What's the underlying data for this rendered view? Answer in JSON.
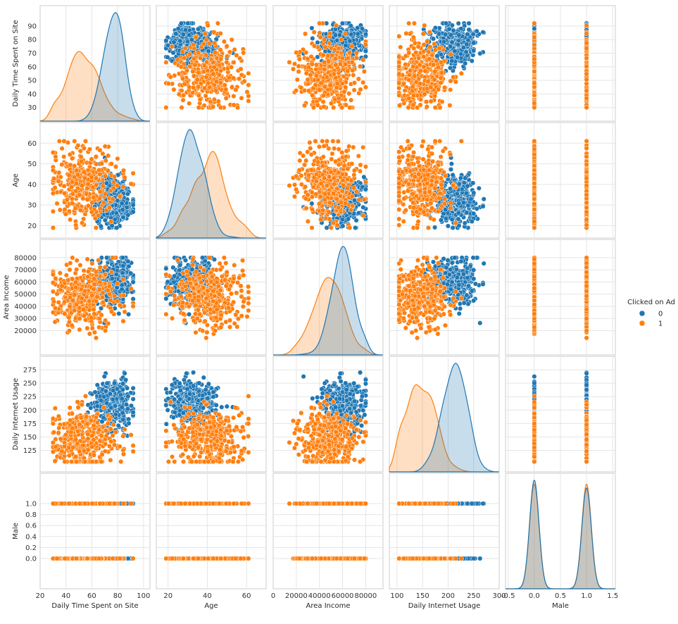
{
  "chart_data": {
    "type": "scatter",
    "subtype": "pairplot",
    "variables": [
      {
        "name": "Daily Time Spent on Site",
        "range": [
          30,
          92
        ],
        "axis_lim": [
          20,
          105
        ],
        "xticks": [
          20,
          40,
          60,
          80,
          100
        ],
        "yticks": [
          30,
          40,
          50,
          60,
          70,
          80,
          90
        ]
      },
      {
        "name": "Age",
        "range": [
          19,
          61
        ],
        "axis_lim": [
          14,
          70
        ],
        "xticks": [
          20,
          40,
          60
        ],
        "yticks": [
          20,
          30,
          40,
          50,
          60
        ]
      },
      {
        "name": "Area Income",
        "range": [
          14000,
          80000
        ],
        "axis_lim": [
          0,
          95000
        ],
        "xticks": [
          0,
          20000,
          40000,
          60000,
          80000
        ],
        "yticks": [
          20000,
          30000,
          40000,
          50000,
          60000,
          70000,
          80000
        ]
      },
      {
        "name": "Daily Internet Usage",
        "range": [
          104,
          270
        ],
        "axis_lim": [
          85,
          300
        ],
        "xticks": [
          100,
          150,
          200,
          250,
          300
        ],
        "yticks": [
          125,
          150,
          175,
          200,
          225,
          250,
          275
        ]
      },
      {
        "name": "Male",
        "range": [
          0,
          1
        ],
        "axis_lim": [
          -0.55,
          1.55
        ],
        "xticks": [
          -0.5,
          0.0,
          0.5,
          1.0,
          1.5
        ],
        "yticks": [
          0.0,
          0.2,
          0.4,
          0.6,
          0.8,
          1.0
        ]
      }
    ],
    "hue": {
      "name": "Clicked on Ad",
      "levels": [
        "0",
        "1"
      ],
      "colors": [
        "#1f77b4",
        "#ff7f0e"
      ]
    },
    "class_summary": [
      {
        "level": "0",
        "Daily Time Spent on Site": {
          "mean": 77,
          "sd": 7
        },
        "Age": {
          "mean": 32,
          "sd": 6
        },
        "Area Income": {
          "mean": 61000,
          "sd": 9000
        },
        "Daily Internet Usage": {
          "mean": 214,
          "sd": 22
        },
        "Male": {
          "p": 0.5
        }
      },
      {
        "level": "1",
        "Daily Time Spent on Site": {
          "mean": 53,
          "sd": 13
        },
        "Age": {
          "mean": 41,
          "sd": 9
        },
        "Area Income": {
          "mean": 48000,
          "sd": 13000
        },
        "Daily Internet Usage": {
          "mean": 146,
          "sd": 30
        },
        "Male": {
          "p": 0.48
        }
      }
    ],
    "grid": true,
    "legend_placement": "right"
  }
}
